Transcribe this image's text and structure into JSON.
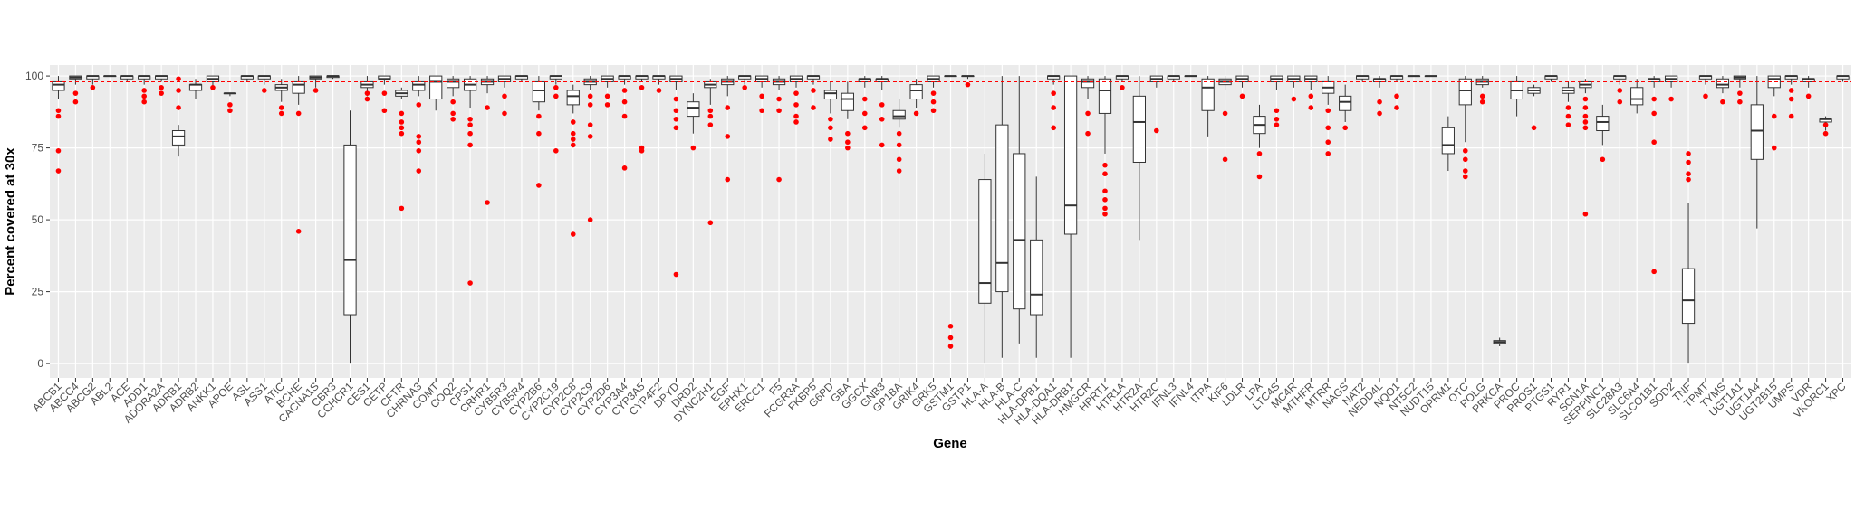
{
  "chart_data": {
    "type": "boxplot",
    "y_label": "Percent covered at 30x",
    "x_label": "Gene",
    "ylim": [
      -5,
      103.8
    ],
    "yticks": [
      0,
      25,
      50,
      75,
      100
    ],
    "grid": true,
    "box_color": "#333333",
    "outlier_color": "#ff0000",
    "reference_line": 98,
    "reference_color": "#ff0000",
    "categories": [
      "ABCB1",
      "ABCC4",
      "ABCG2",
      "ABL2",
      "ACE",
      "ADD1",
      "ADORA2A",
      "ADRB1",
      "ADRB2",
      "ANKK1",
      "APOE",
      "ASL",
      "ASS1",
      "ATIC",
      "BCHE",
      "CACNA1S",
      "CBR3",
      "CCHCR1",
      "CES1",
      "CETP",
      "CFTR",
      "CHRNA3",
      "COMT",
      "COQ2",
      "CPS1",
      "CRHR1",
      "CYB5R3",
      "CYB5R4",
      "CYP2B6",
      "CYP2C19",
      "CYP2C8",
      "CYP2C9",
      "CYP2D6",
      "CYP3A4",
      "CYP3A5",
      "CYP4F2",
      "DPYD",
      "DRD2",
      "DYNC2H1",
      "EGF",
      "EPHX1",
      "ERCC1",
      "F5",
      "FCGR3A",
      "FKBP5",
      "G6PD",
      "GBA",
      "GGCX",
      "GNB3",
      "GP1BA",
      "GRIK4",
      "GRK5",
      "GSTM1",
      "GSTP1",
      "HLA-A",
      "HLA-B",
      "HLA-C",
      "HLA-DPB1",
      "HLA-DQA1",
      "HLA-DRB1",
      "HMGCR",
      "HPRT1",
      "HTR1A",
      "HTR2A",
      "HTR2C",
      "IFNL3",
      "IFNL4",
      "ITPA",
      "KIF6",
      "LDLR",
      "LPA",
      "LTC4S",
      "MC4R",
      "MTHFR",
      "MTRR",
      "NAGS",
      "NAT2",
      "NEDD4L",
      "NQO1",
      "NT5C2",
      "NUDT15",
      "OPRM1",
      "OTC",
      "POLG",
      "PRKCA",
      "PROC",
      "PROS1",
      "PTGS1",
      "RYR1",
      "SCN1A",
      "SERPINC1",
      "SLC28A3",
      "SLC6A4",
      "SLCO1B1",
      "SOD2",
      "TNF",
      "TPMT",
      "TYMS",
      "UGT1A1",
      "UGT1A4",
      "UGT2B15",
      "UMPS",
      "VDR",
      "VKORC1",
      "XPC"
    ],
    "boxes": [
      [
        92,
        95,
        97,
        98,
        100
      ],
      [
        97,
        99,
        99.5,
        100,
        100
      ],
      [
        97,
        99,
        100,
        100,
        100
      ],
      [
        100,
        100,
        100,
        100,
        100
      ],
      [
        98,
        99,
        100,
        100,
        100
      ],
      [
        97,
        99,
        100,
        100,
        100
      ],
      [
        98,
        99,
        100,
        100,
        100
      ],
      [
        72,
        76,
        79,
        81,
        83
      ],
      [
        92,
        95,
        97,
        97,
        99
      ],
      [
        95,
        98,
        99,
        100,
        100
      ],
      [
        93,
        94,
        94,
        94,
        94
      ],
      [
        98,
        99,
        100,
        100,
        100
      ],
      [
        97,
        99,
        100,
        100,
        100
      ],
      [
        91,
        95,
        96,
        97,
        99
      ],
      [
        90,
        94,
        97,
        98,
        100
      ],
      [
        96,
        99,
        99.5,
        100,
        100
      ],
      [
        99,
        99.5,
        100,
        100,
        100
      ],
      [
        0,
        17,
        36,
        76,
        88
      ],
      [
        93,
        96,
        97,
        98,
        100
      ],
      [
        97,
        99,
        99,
        100,
        100
      ],
      [
        92,
        93,
        94,
        95,
        96
      ],
      [
        93,
        95,
        97,
        98,
        100
      ],
      [
        88,
        92,
        98,
        100,
        100
      ],
      [
        93,
        96,
        98,
        99,
        100
      ],
      [
        89,
        95,
        97,
        99,
        100
      ],
      [
        94,
        97,
        98,
        99,
        100
      ],
      [
        96,
        98,
        99,
        100,
        100
      ],
      [
        98,
        99,
        100,
        100,
        100
      ],
      [
        88,
        91,
        95,
        98,
        100
      ],
      [
        97,
        99,
        100,
        100,
        100
      ],
      [
        87,
        90,
        93,
        95,
        97
      ],
      [
        95,
        97,
        98,
        99,
        100
      ],
      [
        96,
        98,
        99,
        100,
        100
      ],
      [
        97,
        99,
        100,
        100,
        100
      ],
      [
        98,
        99,
        100,
        100,
        100
      ],
      [
        97,
        99,
        100,
        100,
        100
      ],
      [
        95,
        98,
        99,
        100,
        100
      ],
      [
        80,
        86,
        89,
        91,
        94
      ],
      [
        90,
        96,
        97,
        98,
        99
      ],
      [
        93,
        97,
        98,
        99,
        100
      ],
      [
        97,
        99,
        100,
        100,
        100
      ],
      [
        96,
        98,
        99,
        100,
        100
      ],
      [
        95,
        97,
        98,
        99,
        100
      ],
      [
        96,
        98,
        99,
        100,
        100
      ],
      [
        97,
        99,
        100,
        100,
        100
      ],
      [
        87,
        92,
        94,
        95,
        98
      ],
      [
        85,
        88,
        92,
        94,
        98
      ],
      [
        96,
        98,
        99,
        99,
        100
      ],
      [
        95,
        98,
        99,
        99,
        100
      ],
      [
        82,
        85,
        86,
        88,
        92
      ],
      [
        89,
        92,
        95,
        97,
        99
      ],
      [
        96,
        98,
        99,
        100,
        100
      ],
      [
        100,
        100,
        100,
        100,
        100
      ],
      [
        99,
        100,
        100,
        100,
        100
      ],
      [
        0,
        21,
        28,
        64,
        73
      ],
      [
        2,
        25,
        35,
        83,
        100
      ],
      [
        7,
        19,
        43,
        73,
        100
      ],
      [
        2,
        17,
        24,
        43,
        65
      ],
      [
        97,
        99,
        100,
        100,
        100
      ],
      [
        2,
        45,
        55,
        100,
        100
      ],
      [
        92,
        96,
        98,
        99,
        100
      ],
      [
        73,
        87,
        95,
        99,
        100
      ],
      [
        98,
        99,
        100,
        100,
        100
      ],
      [
        43,
        70,
        84,
        93,
        100
      ],
      [
        96,
        98,
        99,
        100,
        100
      ],
      [
        98,
        99,
        100,
        100,
        100
      ],
      [
        100,
        100,
        100,
        100,
        100
      ],
      [
        79,
        88,
        96,
        99,
        100
      ],
      [
        95,
        97,
        98,
        99,
        100
      ],
      [
        96,
        98,
        99,
        100,
        100
      ],
      [
        75,
        80,
        83,
        86,
        90
      ],
      [
        95,
        98,
        99,
        100,
        100
      ],
      [
        96,
        98,
        99,
        100,
        100
      ],
      [
        95,
        98,
        99,
        100,
        100
      ],
      [
        90,
        94,
        96,
        98,
        100
      ],
      [
        84,
        88,
        91,
        93,
        97
      ],
      [
        98,
        99,
        100,
        100,
        100
      ],
      [
        96,
        98,
        99,
        99,
        100
      ],
      [
        98,
        99,
        100,
        100,
        100
      ],
      [
        100,
        100,
        100,
        100,
        100
      ],
      [
        100,
        100,
        100,
        100,
        100
      ],
      [
        67,
        73,
        76,
        82,
        86
      ],
      [
        77,
        90,
        95,
        99,
        100
      ],
      [
        96,
        97,
        98,
        99,
        100
      ],
      [
        6,
        7,
        7.5,
        8,
        9
      ],
      [
        86,
        92,
        95,
        98,
        100
      ],
      [
        93,
        94,
        95,
        96,
        97
      ],
      [
        98,
        99,
        100,
        100,
        100
      ],
      [
        91,
        94,
        95,
        96,
        98
      ],
      [
        94,
        96,
        97,
        98,
        99
      ],
      [
        76,
        81,
        84,
        86,
        90
      ],
      [
        97,
        99,
        100,
        100,
        100
      ],
      [
        87,
        90,
        92,
        96,
        99
      ],
      [
        96,
        98,
        99,
        99,
        100
      ],
      [
        96,
        98,
        99,
        100,
        100
      ],
      [
        0,
        14,
        22,
        33,
        56
      ],
      [
        97,
        99,
        100,
        100,
        100
      ],
      [
        94,
        96,
        97,
        99,
        100
      ],
      [
        96,
        99,
        99.5,
        100,
        100
      ],
      [
        47,
        71,
        81,
        90,
        100
      ],
      [
        93,
        96,
        99,
        100,
        100
      ],
      [
        97,
        99,
        100,
        100,
        100
      ],
      [
        96,
        98,
        99,
        99,
        100
      ],
      [
        81,
        84,
        85,
        85,
        86
      ],
      [
        98,
        99,
        100,
        100,
        100
      ]
    ],
    "outliers": [
      [
        88,
        86,
        74,
        67
      ],
      [
        94,
        91
      ],
      [
        96
      ],
      [],
      [],
      [
        95,
        93,
        91
      ],
      [
        96,
        94
      ],
      [
        95,
        89,
        99
      ],
      [],
      [
        96
      ],
      [
        90,
        88
      ],
      [],
      [
        95
      ],
      [
        89,
        87
      ],
      [
        87,
        46
      ],
      [
        95
      ],
      [],
      [],
      [
        94,
        92
      ],
      [
        94,
        88
      ],
      [
        87,
        84,
        82,
        80,
        54
      ],
      [
        90,
        79,
        77,
        74,
        67
      ],
      [],
      [
        91,
        87,
        85
      ],
      [
        85,
        83,
        80,
        76,
        28
      ],
      [
        89,
        56
      ],
      [
        93,
        87
      ],
      [],
      [
        86,
        80,
        62
      ],
      [
        96,
        93,
        74
      ],
      [
        84,
        80,
        78,
        76,
        45
      ],
      [
        93,
        90,
        83,
        79,
        50
      ],
      [
        93,
        90
      ],
      [
        95,
        91,
        86,
        68
      ],
      [
        96,
        75,
        74
      ],
      [
        95
      ],
      [
        92,
        88,
        85,
        82,
        31
      ],
      [
        75
      ],
      [
        88,
        86,
        83,
        49
      ],
      [
        89,
        79,
        64
      ],
      [
        96
      ],
      [
        93,
        88
      ],
      [
        92,
        88,
        64
      ],
      [
        94,
        90,
        86,
        84
      ],
      [
        95,
        89
      ],
      [
        85,
        82,
        78
      ],
      [
        80,
        77,
        75
      ],
      [
        92,
        87,
        82
      ],
      [
        90,
        85,
        76
      ],
      [
        80,
        76,
        71,
        67
      ],
      [
        87
      ],
      [
        94,
        91,
        88
      ],
      [
        13,
        9,
        6
      ],
      [
        97
      ],
      [],
      [],
      [],
      [],
      [
        94,
        89,
        82
      ],
      [],
      [
        87,
        80
      ],
      [
        69,
        66,
        60,
        57,
        54,
        52
      ],
      [
        96
      ],
      [],
      [
        81
      ],
      [],
      [],
      [],
      [
        87,
        71
      ],
      [
        93
      ],
      [
        73,
        65
      ],
      [
        88,
        85,
        83
      ],
      [
        92
      ],
      [
        93,
        89
      ],
      [
        88,
        82,
        77,
        73
      ],
      [
        82
      ],
      [],
      [
        91,
        87
      ],
      [
        93,
        89
      ],
      [],
      [],
      [],
      [
        74,
        71,
        67,
        65
      ],
      [
        93,
        91
      ],
      [],
      [],
      [
        82
      ],
      [],
      [
        89,
        86,
        83
      ],
      [
        92,
        89,
        86,
        84,
        82,
        52
      ],
      [
        71
      ],
      [
        95,
        91
      ],
      [],
      [
        92,
        87,
        77,
        32
      ],
      [
        92
      ],
      [
        73,
        70,
        66,
        64
      ],
      [
        93
      ],
      [
        91
      ],
      [
        94,
        91
      ],
      [],
      [
        86,
        75
      ],
      [
        95,
        92,
        86
      ],
      [
        93
      ],
      [
        83,
        80
      ],
      []
    ]
  }
}
